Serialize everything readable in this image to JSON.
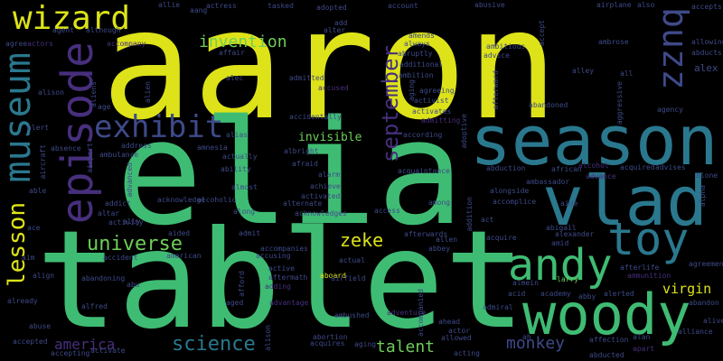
{
  "colors": {
    "background": "#000000",
    "yellow": "#dde318",
    "green": "#3fbc73",
    "lightgreen": "#6ece58",
    "teal": "#2a788e",
    "blue": "#3e4a89",
    "purple": "#472f7d",
    "violet": "#471164"
  },
  "words": {
    "aaron": "aaron",
    "elia": "elia",
    "tablet": "tablet",
    "season": "season",
    "vlad": "vlad",
    "woody": "woody",
    "andy": "andy",
    "toy": "toy",
    "episode": "episode",
    "museum": "museum",
    "wizard": "wizard",
    "buzz": "buzz",
    "exhibit": "exhibit",
    "lesson": "lesson",
    "universe": "universe",
    "invention": "invention",
    "september": "september",
    "science": "science",
    "zeke": "zeke",
    "monkey": "monkey",
    "talent": "talent",
    "america": "america",
    "virgin": "virgin",
    "invisible": "invisible",
    "allie": "allie",
    "aang": "aang",
    "actress": "actress",
    "tasked": "tasked",
    "adopted": "adopted",
    "account": "account",
    "abusive": "abusive",
    "airplane": "airplane",
    "also": "also",
    "accepts": "accepts",
    "agree": "agree",
    "actors": "actors",
    "agent": "agent",
    "although": "although",
    "accompany": "accompany",
    "affair": "affair",
    "alter": "alter",
    "add": "add",
    "amends": "amends",
    "always": "always",
    "abruptly": "abruptly",
    "additional": "additional",
    "ambition": "ambition",
    "advice": "advice",
    "ambitious": "ambitious",
    "accept": "accept",
    "alley": "alley",
    "ambrose": "ambrose",
    "allowing": "allowing",
    "abducts": "abducts",
    "alex": "alex",
    "alison": "alison",
    "aliens": "aliens",
    "age": "age",
    "alien": "alien",
    "alec": "alec",
    "admitted": "admitted",
    "accused": "accused",
    "agreeing": "agreeing",
    "activates": "activates",
    "afterward": "afterward",
    "abandoned": "abandoned",
    "all": "all",
    "aggressive": "aggressive",
    "agency": "agency",
    "alert": "alert",
    "accidentally": "accidentally",
    "admitting": "admitting",
    "adoptive": "adoptive",
    "aircraft": "aircraft",
    "address": "address",
    "amnesia": "amnesia",
    "alias": "alias",
    "airport": "airport",
    "albright": "albright",
    "afraid": "afraid",
    "activist": "activist",
    "according": "according",
    "absence": "absence",
    "ambulance": "ambulance",
    "actually": "actually",
    "ability": "ability",
    "alarm": "alarm",
    "achieve": "achieve",
    "acquaintance": "acquaintance",
    "abduction": "abduction",
    "african": "african",
    "alcohol": "alcohol",
    "acquired": "acquired",
    "advises": "advises",
    "alone": "alone",
    "alpha": "alpha",
    "able": "able",
    "advanced": "advanced",
    "addict": "addict",
    "almost": "almost",
    "activated": "activated",
    "alongside": "alongside",
    "ambassador": "ambassador",
    "advance": "advance",
    "altar": "altar",
    "ally": "ally",
    "acknowledge": "acknowledge",
    "alcoholic": "alcoholic",
    "alternate": "alternate",
    "acknowledges": "acknowledges",
    "access": "access",
    "among": "among",
    "accomplice": "accomplice",
    "aide": "aide",
    "ace": "ace",
    "activity": "activity",
    "along": "along",
    "addition": "addition",
    "act": "act",
    "abigail": "abigail",
    "aided": "aided",
    "admit": "admit",
    "afterwards": "afterwards",
    "allen": "allen",
    "acquire": "acquire",
    "alexander": "alexander",
    "amid": "amid",
    "aim": "aim",
    "accident": "accident",
    "american": "american",
    "accompanies": "accompanies",
    "accusing": "accusing",
    "abbey": "abbey",
    "afterlife": "afterlife",
    "ammunition": "ammunition",
    "agreement": "agreement",
    "align": "align",
    "abandoning": "abandoning",
    "abu": "abu",
    "active": "active",
    "afford": "afford",
    "aftermath": "aftermath",
    "aboard": "aboard",
    "airfield": "airfield",
    "actual": "actual",
    "almein": "almein",
    "larry": "larry",
    "abandon": "abandon",
    "already": "already",
    "alfred": "alfred",
    "aged": "aged",
    "adding": "adding",
    "advantage": "advantage",
    "acid": "acid",
    "academy": "academy",
    "abby": "abby",
    "alerted": "alerted",
    "alive": "alive",
    "abuse": "abuse",
    "ambushed": "ambushed",
    "adventure": "adventure",
    "admiral": "admiral",
    "ahead": "ahead",
    "alliance": "alliance",
    "accepted": "accepted",
    "activate": "activate",
    "alison2": "alison",
    "abortion": "abortion",
    "acquires": "acquires",
    "aging": "aging",
    "actor": "actor",
    "allowed": "allowed",
    "affection": "affection",
    "alan": "alan",
    "accepting": "accepting",
    "acting": "acting",
    "abducted": "abducted",
    "ah": "ah",
    "accompanied": "accompanied",
    "apart": "apart"
  }
}
